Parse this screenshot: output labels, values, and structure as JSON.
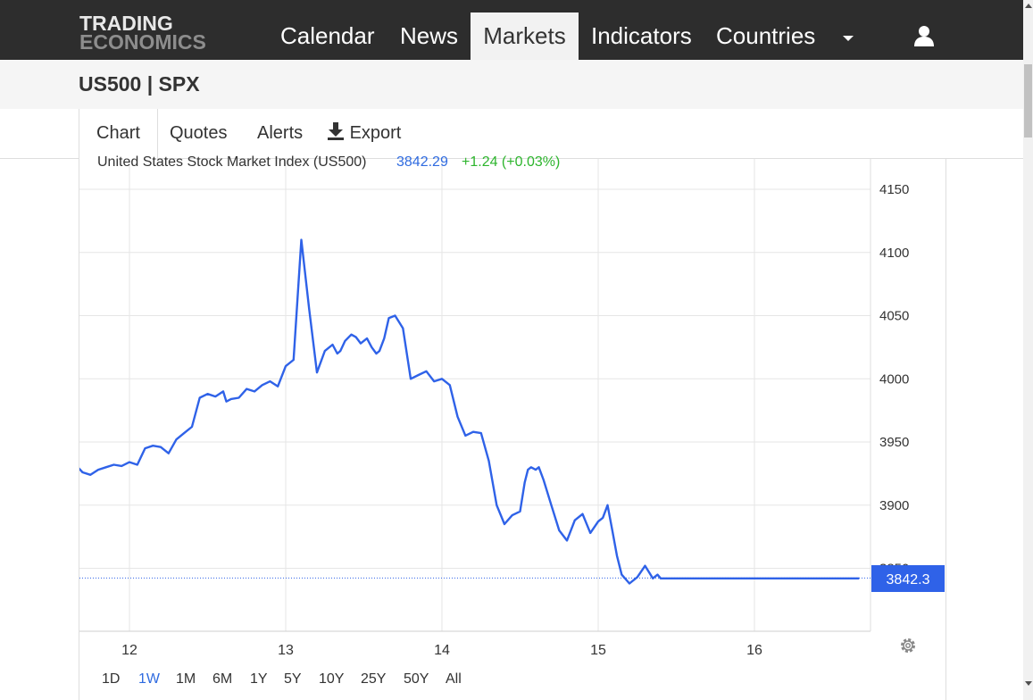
{
  "header": {
    "logo_line1": "TRADING",
    "logo_line2": "ECONOMICS",
    "nav": [
      "Calendar",
      "News",
      "Markets",
      "Indicators",
      "Countries"
    ],
    "active_nav": "Markets",
    "icons": [
      "chevron-down-icon",
      "user-icon"
    ]
  },
  "page_title": "US500 | SPX",
  "tabs": {
    "chart": "Chart",
    "quotes": "Quotes",
    "alerts": "Alerts",
    "export": "Export",
    "export_icon": "download-icon"
  },
  "ranges": [
    "1D",
    "1W",
    "1M",
    "6M",
    "1Y",
    "5Y",
    "10Y",
    "25Y",
    "50Y",
    "All"
  ],
  "active_range": "1W",
  "colors": {
    "line": "#2f62e8",
    "up": "#2db52d",
    "accent": "#2f6be0",
    "nav_bg": "#2d2d2d"
  },
  "chart_data": {
    "type": "line",
    "title": "United States Stock Market Index (US500)",
    "last_value_label": "3842.29",
    "change_label": "+1.24 (+0.03%)",
    "price_tag": "3842.3",
    "x_ticks": [
      "12",
      "13",
      "14",
      "15",
      "16"
    ],
    "ylim": [
      3800,
      4150
    ],
    "y_ticks": [
      4150,
      4100,
      4050,
      4000,
      3950,
      3900,
      3850
    ],
    "grid": true,
    "series": [
      {
        "x": [
          11.67,
          11.7,
          11.75,
          11.8,
          11.85,
          11.9,
          11.95,
          12.0,
          12.05,
          12.1,
          12.15,
          12.2,
          12.25,
          12.3,
          12.35,
          12.4,
          12.45,
          12.5,
          12.55,
          12.6,
          12.62,
          12.65,
          12.7,
          12.75,
          12.8,
          12.85,
          12.9,
          12.95,
          13.0,
          13.05,
          13.1,
          13.15,
          13.2,
          13.25,
          13.3,
          13.33,
          13.35,
          13.38,
          13.42,
          13.45,
          13.48,
          13.5,
          13.52,
          13.55,
          13.58,
          13.6,
          13.63,
          13.66,
          13.7,
          13.75,
          13.8,
          13.85,
          13.9,
          13.95,
          14.0,
          14.05,
          14.1,
          14.15,
          14.2,
          14.25,
          14.3,
          14.35,
          14.4,
          14.45,
          14.5,
          14.53,
          14.55,
          14.57,
          14.6,
          14.62,
          14.65,
          14.7,
          14.75,
          14.8,
          14.85,
          14.9,
          14.95,
          15.0,
          15.03,
          15.06,
          15.09,
          15.12,
          15.15,
          15.2,
          15.25,
          15.3,
          15.35,
          15.38,
          15.4,
          15.45,
          15.5,
          15.55,
          15.6,
          15.65,
          15.7,
          15.73,
          15.75,
          15.8,
          15.85,
          15.9,
          15.95,
          16.0,
          16.03,
          16.05,
          16.1,
          16.15,
          16.2,
          16.25,
          16.3,
          16.35,
          16.38,
          16.4,
          16.42,
          16.45,
          16.48,
          16.5,
          16.53,
          16.56,
          16.58,
          16.6,
          16.63,
          16.67
        ],
        "y": [
          3930,
          3926,
          3924,
          3928,
          3930,
          3932,
          3931,
          3934,
          3932,
          3945,
          3947,
          3946,
          3941,
          3952,
          3957,
          3962,
          3985,
          3988,
          3986,
          3990,
          3982,
          3984,
          3985,
          3992,
          3990,
          3995,
          3998,
          3994,
          4010,
          4015,
          4110,
          4055,
          4005,
          4022,
          4027,
          4020,
          4022,
          4030,
          4035,
          4033,
          4028,
          4030,
          4032,
          4025,
          4020,
          4022,
          4032,
          4048,
          4050,
          4040,
          4000,
          4003,
          4006,
          3998,
          4000,
          3995,
          3970,
          3955,
          3958,
          3957,
          3935,
          3900,
          3885,
          3892,
          3895,
          3918,
          3928,
          3930,
          3928,
          3930,
          3920,
          3900,
          3880,
          3872,
          3888,
          3893,
          3878,
          3887,
          3890,
          3900,
          3880,
          3860,
          3845,
          3838,
          3843,
          3852,
          3842,
          3845,
          3842,
          3842,
          3842,
          3842,
          3842,
          3842,
          3842,
          3842,
          3842,
          3842,
          3842,
          3842,
          3842,
          3842,
          3842,
          3842,
          3842,
          3842,
          3842,
          3842,
          3842,
          3842,
          3842,
          3842,
          3842,
          3842,
          3842,
          3842,
          3842,
          3842,
          3842,
          3842,
          3842,
          3842
        ]
      }
    ]
  }
}
